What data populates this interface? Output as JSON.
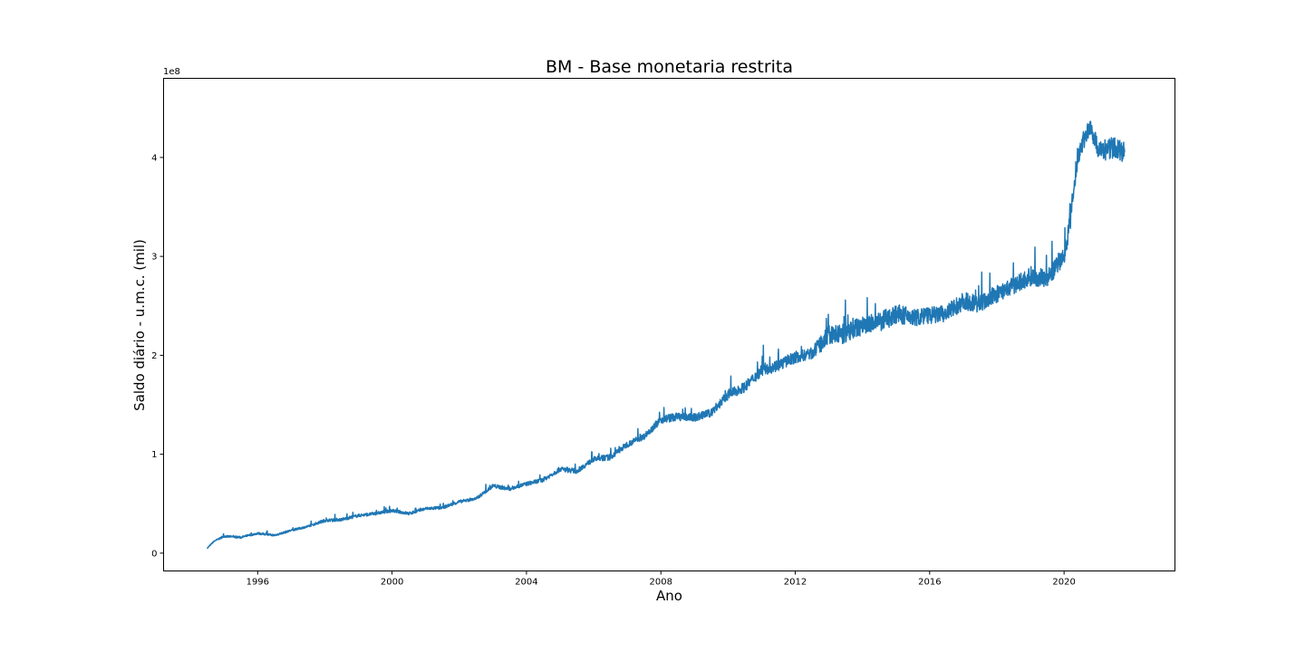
{
  "chart_data": {
    "type": "line",
    "title": "BM - Base monetaria restrita",
    "xlabel": "Ano",
    "ylabel": "Saldo diário - u.m.c. (mil)",
    "y_offset_label": "1e8",
    "xlim": [
      1993.2,
      2023.3
    ],
    "ylim": [
      -0.18,
      4.8
    ],
    "x_ticks": [
      1996,
      2000,
      2004,
      2008,
      2012,
      2016,
      2020
    ],
    "x_tick_labels": [
      "1996",
      "2000",
      "2004",
      "2008",
      "2012",
      "2016",
      "2020"
    ],
    "y_ticks": [
      0,
      1,
      2,
      3,
      4
    ],
    "y_tick_labels": [
      "0",
      "1",
      "2",
      "3",
      "4"
    ],
    "grid": false,
    "legend": "none",
    "series": [
      {
        "color": "#1f77b4",
        "x": [
          1994.5,
          1994.7,
          1995.0,
          1995.5,
          1996.0,
          1996.5,
          1997.0,
          1997.5,
          1998.0,
          1998.5,
          1999.0,
          1999.5,
          2000.0,
          2000.5,
          2001.0,
          2001.5,
          2002.0,
          2002.5,
          2003.0,
          2003.5,
          2004.0,
          2004.5,
          2005.0,
          2005.5,
          2006.0,
          2006.5,
          2007.0,
          2007.5,
          2008.0,
          2008.5,
          2009.0,
          2009.5,
          2010.0,
          2010.5,
          2011.0,
          2011.5,
          2012.0,
          2012.5,
          2013.0,
          2013.5,
          2014.0,
          2014.5,
          2015.0,
          2015.5,
          2016.0,
          2016.5,
          2017.0,
          2017.5,
          2018.0,
          2018.5,
          2019.0,
          2019.5,
          2020.0,
          2020.2,
          2020.4,
          2020.6,
          2020.8,
          2021.0,
          2021.2,
          2021.4,
          2021.6,
          2021.8
        ],
        "y": [
          0.05,
          0.12,
          0.17,
          0.16,
          0.2,
          0.18,
          0.23,
          0.27,
          0.33,
          0.34,
          0.38,
          0.4,
          0.43,
          0.4,
          0.45,
          0.46,
          0.52,
          0.55,
          0.68,
          0.65,
          0.7,
          0.74,
          0.85,
          0.83,
          0.95,
          0.97,
          1.1,
          1.18,
          1.35,
          1.38,
          1.37,
          1.42,
          1.6,
          1.68,
          1.85,
          1.9,
          1.98,
          2.02,
          2.2,
          2.22,
          2.3,
          2.33,
          2.42,
          2.38,
          2.4,
          2.42,
          2.55,
          2.52,
          2.62,
          2.7,
          2.8,
          2.78,
          3.0,
          3.4,
          4.0,
          4.2,
          4.3,
          4.1,
          4.05,
          4.1,
          4.08,
          4.05
        ],
        "noise": [
          0.01,
          0.01,
          0.02,
          0.02,
          0.02,
          0.02,
          0.02,
          0.02,
          0.03,
          0.03,
          0.03,
          0.03,
          0.03,
          0.03,
          0.03,
          0.03,
          0.03,
          0.03,
          0.04,
          0.04,
          0.04,
          0.04,
          0.05,
          0.05,
          0.05,
          0.06,
          0.06,
          0.06,
          0.08,
          0.08,
          0.08,
          0.08,
          0.1,
          0.1,
          0.12,
          0.12,
          0.12,
          0.12,
          0.2,
          0.2,
          0.2,
          0.2,
          0.2,
          0.18,
          0.18,
          0.18,
          0.18,
          0.18,
          0.18,
          0.18,
          0.2,
          0.18,
          0.18,
          0.22,
          0.22,
          0.2,
          0.2,
          0.18,
          0.18,
          0.22,
          0.22,
          0.2
        ]
      }
    ]
  }
}
